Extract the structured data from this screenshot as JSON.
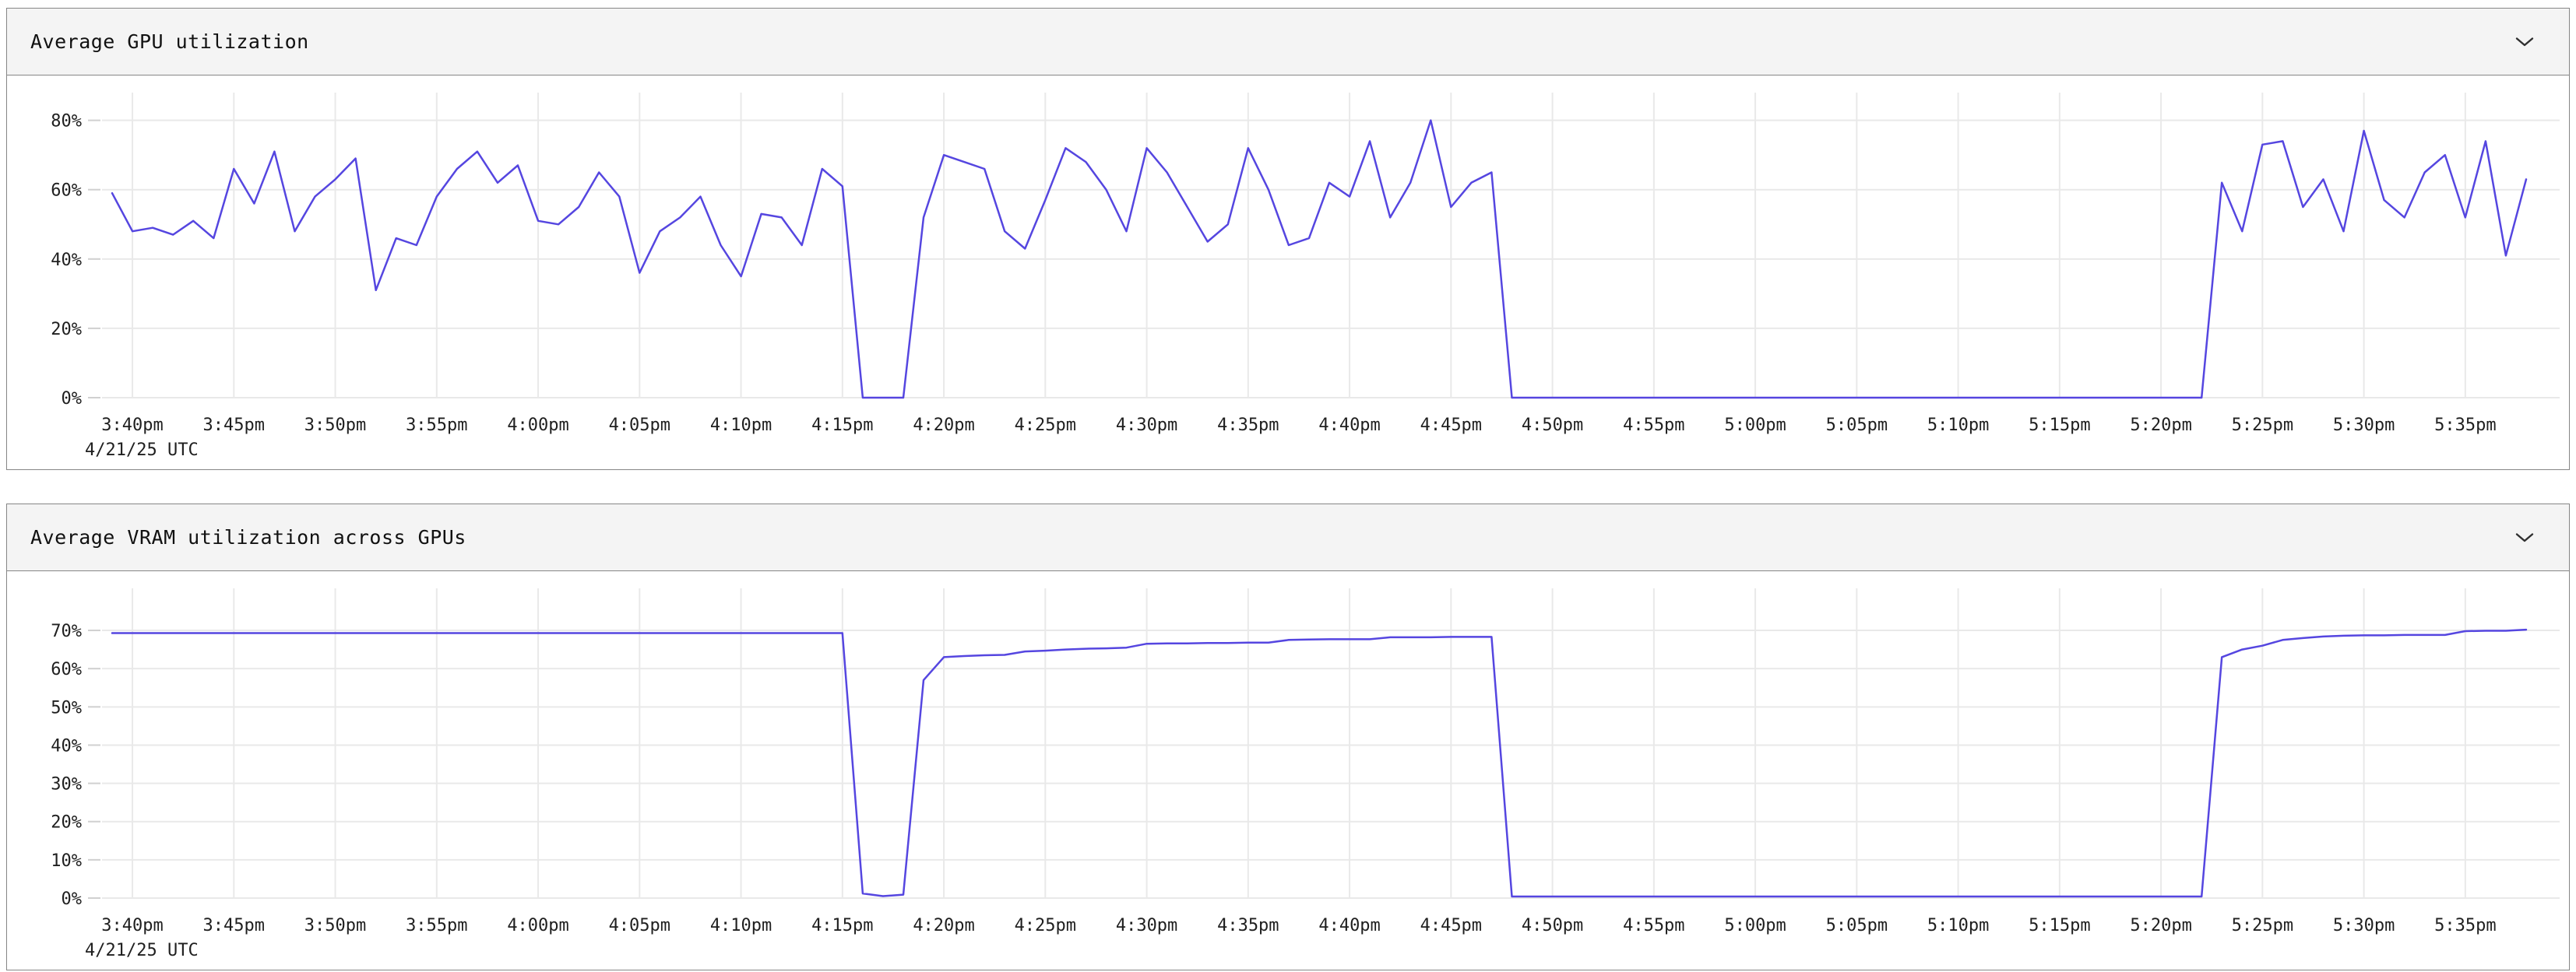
{
  "colors": {
    "accent": "#5546e0",
    "grid": "#e9e9e9",
    "tick": "#d0d0d0",
    "text": "#1f1f1f",
    "panel_border": "#868686",
    "header_bg": "#f4f4f4",
    "page_bg": "#ffffff"
  },
  "panels": [
    {
      "title": "Average GPU utilization",
      "collapse_icon": "chevron-down"
    },
    {
      "title": "Average VRAM utilization across GPUs",
      "collapse_icon": "chevron-down"
    }
  ],
  "chart_data": [
    {
      "type": "line",
      "title": "Average GPU utilization",
      "xlabel": "",
      "ylabel": "",
      "grid": true,
      "legend": "none",
      "ylim": [
        0,
        88
      ],
      "y_ticks": [
        0,
        20,
        40,
        60,
        80
      ],
      "y_tick_labels": [
        "0%",
        "20%",
        "40%",
        "60%",
        "80%"
      ],
      "x_start_time": "3:39pm",
      "x_minutes_per_point": 1,
      "x_first_tick_minute": 1,
      "x_tick_step_minutes": 5,
      "x_tick_labels": [
        "3:40pm",
        "3:45pm",
        "3:50pm",
        "3:55pm",
        "4:00pm",
        "4:05pm",
        "4:10pm",
        "4:15pm",
        "4:20pm",
        "4:25pm",
        "4:30pm",
        "4:35pm",
        "4:40pm",
        "4:45pm",
        "4:50pm",
        "4:55pm",
        "5:00pm",
        "5:05pm",
        "5:10pm",
        "5:15pm",
        "5:20pm",
        "5:25pm",
        "5:30pm",
        "5:35pm"
      ],
      "x_date_label": "4/21/25 UTC",
      "values": [
        59,
        48,
        49,
        47,
        51,
        46,
        66,
        56,
        71,
        48,
        58,
        63,
        69,
        31,
        46,
        44,
        58,
        66,
        71,
        62,
        67,
        51,
        50,
        55,
        65,
        58,
        36,
        48,
        52,
        58,
        44,
        35,
        53,
        52,
        44,
        66,
        61,
        0,
        0,
        0,
        52,
        70,
        68,
        66,
        48,
        43,
        57,
        72,
        68,
        60,
        48,
        72,
        65,
        55,
        45,
        50,
        72,
        60,
        44,
        46,
        62,
        58,
        74,
        52,
        62,
        80,
        55,
        62,
        65,
        0,
        0,
        0,
        0,
        0,
        0,
        0,
        0,
        0,
        0,
        0,
        0,
        0,
        0,
        0,
        0,
        0,
        0,
        0,
        0,
        0,
        0,
        0,
        0,
        0,
        0,
        0,
        0,
        0,
        0,
        0,
        0,
        0,
        0,
        0,
        62,
        48,
        73,
        74,
        55,
        63,
        48,
        77,
        57,
        52,
        65,
        70,
        52,
        74,
        41,
        63
      ]
    },
    {
      "type": "line",
      "title": "Average VRAM utilization across GPUs",
      "xlabel": "",
      "ylabel": "",
      "grid": true,
      "legend": "none",
      "ylim": [
        0,
        81
      ],
      "y_ticks": [
        0,
        10,
        20,
        30,
        40,
        50,
        60,
        70
      ],
      "y_tick_labels": [
        "0%",
        "10%",
        "20%",
        "30%",
        "40%",
        "50%",
        "60%",
        "70%"
      ],
      "x_start_time": "3:39pm",
      "x_minutes_per_point": 1,
      "x_first_tick_minute": 1,
      "x_tick_step_minutes": 5,
      "x_tick_labels": [
        "3:40pm",
        "3:45pm",
        "3:50pm",
        "3:55pm",
        "4:00pm",
        "4:05pm",
        "4:10pm",
        "4:15pm",
        "4:20pm",
        "4:25pm",
        "4:30pm",
        "4:35pm",
        "4:40pm",
        "4:45pm",
        "4:50pm",
        "4:55pm",
        "5:00pm",
        "5:05pm",
        "5:10pm",
        "5:15pm",
        "5:20pm",
        "5:25pm",
        "5:30pm",
        "5:35pm"
      ],
      "x_date_label": "4/21/25 UTC",
      "values": [
        69.3,
        69.3,
        69.3,
        69.3,
        69.3,
        69.3,
        69.3,
        69.3,
        69.3,
        69.3,
        69.3,
        69.3,
        69.3,
        69.3,
        69.3,
        69.3,
        69.3,
        69.3,
        69.3,
        69.3,
        69.3,
        69.3,
        69.3,
        69.3,
        69.3,
        69.3,
        69.3,
        69.3,
        69.3,
        69.3,
        69.3,
        69.3,
        69.3,
        69.3,
        69.3,
        69.3,
        69.3,
        1.2,
        0.5,
        0.9,
        57,
        63,
        63.3,
        63.5,
        63.6,
        64.5,
        64.7,
        65,
        65.2,
        65.3,
        65.5,
        66.5,
        66.6,
        66.6,
        66.7,
        66.7,
        66.8,
        66.8,
        67.5,
        67.6,
        67.7,
        67.7,
        67.7,
        68.2,
        68.2,
        68.2,
        68.3,
        68.3,
        68.3,
        0.4,
        0.4,
        0.4,
        0.4,
        0.4,
        0.4,
        0.4,
        0.4,
        0.4,
        0.4,
        0.4,
        0.4,
        0.4,
        0.4,
        0.4,
        0.4,
        0.4,
        0.4,
        0.4,
        0.4,
        0.4,
        0.4,
        0.4,
        0.4,
        0.4,
        0.4,
        0.4,
        0.4,
        0.4,
        0.4,
        0.4,
        0.4,
        0.4,
        0.4,
        0.4,
        63,
        65,
        66,
        67.5,
        68,
        68.4,
        68.6,
        68.7,
        68.7,
        68.8,
        68.8,
        68.8,
        69.8,
        69.9,
        69.9,
        70.2
      ]
    }
  ]
}
